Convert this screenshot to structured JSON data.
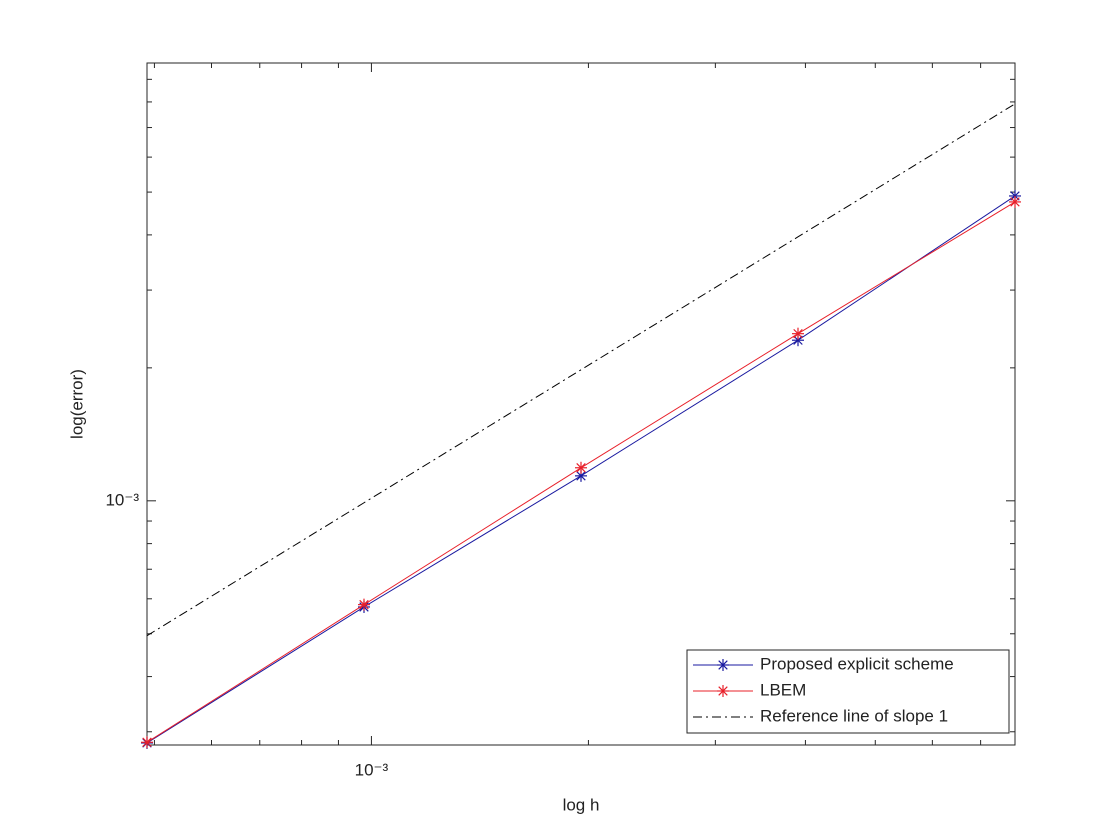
{
  "chart_data": {
    "type": "line",
    "xlabel": "log h",
    "ylabel": "log(error)",
    "x": [
      0.00048828125,
      0.0009765625,
      0.001953125,
      0.00390625,
      0.0078125
    ],
    "series": [
      {
        "name": "Proposed explicit scheme",
        "color": "#1a1aa0",
        "marker": "*",
        "dash": "solid",
        "values": [
          0.000283,
          0.000575,
          0.001139,
          0.00231,
          0.0049
        ]
      },
      {
        "name": "LBEM",
        "color": "#e8202a",
        "marker": "*",
        "dash": "solid",
        "values": [
          0.000284,
          0.000582,
          0.001188,
          0.00239,
          0.00475
        ]
      },
      {
        "name": "Reference line of slope 1",
        "color": "#000000",
        "marker": "none",
        "dash": "dash-dot",
        "values": [
          0.000495,
          0.00099,
          0.00198,
          0.00396,
          0.00792
        ]
      }
    ],
    "xscale": "log",
    "yscale": "log",
    "xlim": [
      0.00048828125,
      0.0078125
    ],
    "ylim": [
      0.00028,
      0.0098
    ],
    "xticks": [
      {
        "value": 0.001,
        "label": "10⁻³"
      }
    ],
    "yticks": [
      {
        "value": 0.001,
        "label": "10⁻³"
      }
    ],
    "xminorticks": [
      0.0005,
      0.0006,
      0.0007,
      0.0008,
      0.0009,
      0.002,
      0.003,
      0.004,
      0.005,
      0.006,
      0.007
    ],
    "yminorticks": [
      0.0003,
      0.0004,
      0.0005,
      0.0006,
      0.0007,
      0.0008,
      0.0009,
      0.002,
      0.003,
      0.004,
      0.005,
      0.006,
      0.007,
      0.008,
      0.009
    ],
    "legend": "lower right"
  }
}
